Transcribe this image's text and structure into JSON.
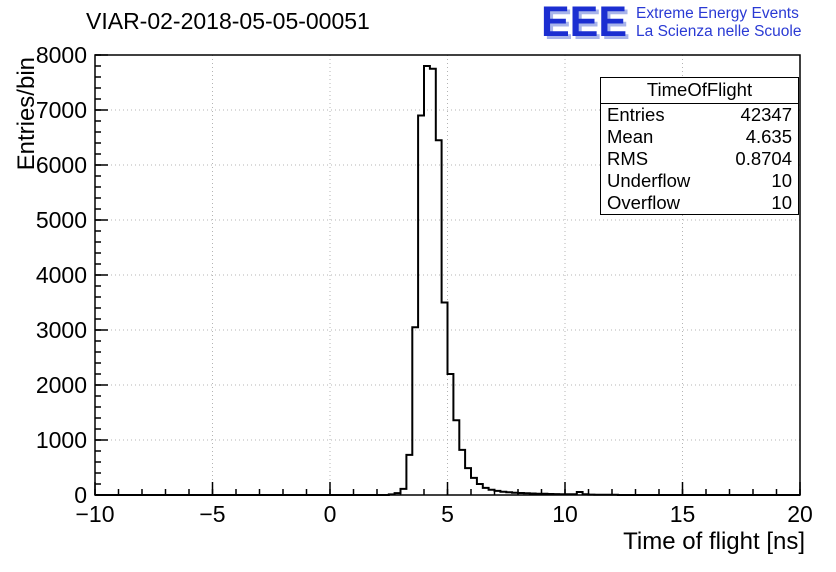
{
  "header": {
    "logo": {
      "text": "EEE",
      "line1": "Extreme Energy Events",
      "line2": "La Scienza nelle Scuole"
    }
  },
  "stats_box": {
    "title": "TimeOfFlight",
    "rows": [
      {
        "label": "Entries",
        "value": "42347"
      },
      {
        "label": "Mean",
        "value": "4.635"
      },
      {
        "label": "RMS",
        "value": "0.8704"
      },
      {
        "label": "Underflow",
        "value": "10"
      },
      {
        "label": "Overflow",
        "value": "10"
      }
    ]
  },
  "chart_data": {
    "type": "bar",
    "subtype": "histogram-step",
    "title": "VIAR-02-2018-05-05-00051",
    "xlabel": "Time of flight [ns]",
    "ylabel": "Entries/bin",
    "xlim": [
      -10,
      20
    ],
    "ylim": [
      0,
      8000
    ],
    "grid": true,
    "x_major_ticks": [
      -10,
      -5,
      0,
      5,
      10,
      15,
      20
    ],
    "x_major_tick_labels": [
      "−10",
      "−5",
      "0",
      "5",
      "10",
      "15",
      "20"
    ],
    "x_minor_step": 1,
    "y_major_ticks": [
      0,
      1000,
      2000,
      3000,
      4000,
      5000,
      6000,
      7000,
      8000
    ],
    "y_major_tick_labels": [
      "0",
      "1000",
      "2000",
      "3000",
      "4000",
      "5000",
      "6000",
      "7000",
      "8000"
    ],
    "y_minor_step": 200,
    "bin_width": 0.25,
    "bins_first_left_edge": 2.5,
    "counts": [
      10,
      35,
      110,
      730,
      3050,
      6900,
      7800,
      7750,
      6450,
      3500,
      2200,
      1360,
      820,
      490,
      310,
      200,
      130,
      95,
      75,
      60,
      50,
      42,
      36,
      31,
      27,
      24,
      21,
      19,
      17,
      15,
      13,
      12,
      55,
      12,
      8,
      6,
      5,
      4,
      3
    ],
    "colors": {
      "histogram_line": "#000000",
      "grid": "#b4b4b4",
      "logo_blue": "#1b2ed1",
      "logo_text_blue": "#2a3ad4"
    }
  }
}
